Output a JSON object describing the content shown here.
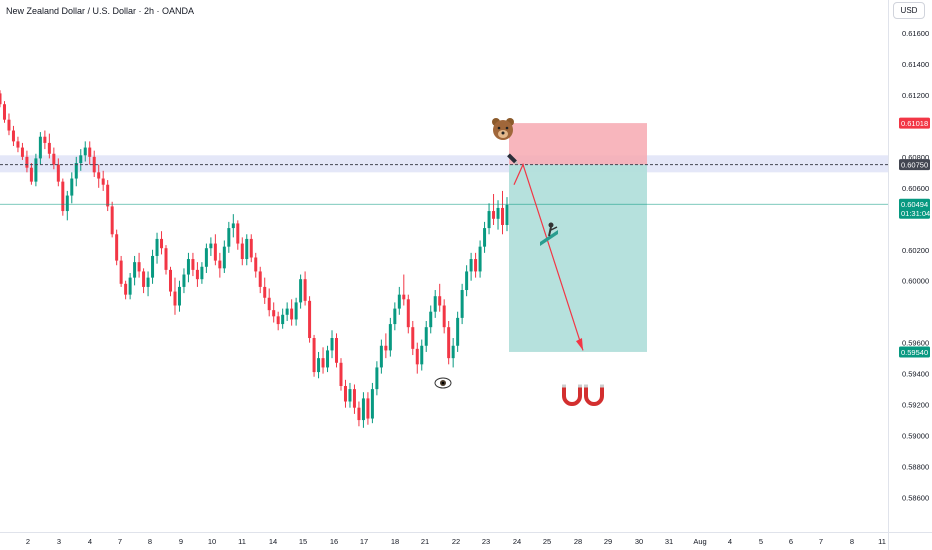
{
  "header": {
    "title": "New Zealand Dollar / U.S. Dollar · 2h · OANDA",
    "currency_button": "USD"
  },
  "chart_data": {
    "type": "candlestick",
    "title": "New Zealand Dollar / U.S. Dollar · 2h · OANDA",
    "y_ticks": [
      "0.61600",
      "0.61400",
      "0.61200",
      "0.60800",
      "0.60600",
      "0.60200",
      "0.60000",
      "0.59600",
      "0.59400",
      "0.59200",
      "0.59000",
      "0.58800",
      "0.58600"
    ],
    "x_ticks": [
      "2",
      "3",
      "4",
      "7",
      "8",
      "9",
      "10",
      "11",
      "14",
      "15",
      "16",
      "17",
      "18",
      "21",
      "22",
      "23",
      "24",
      "25",
      "28",
      "29",
      "30",
      "31",
      "Aug",
      "4",
      "5",
      "6",
      "7",
      "8",
      "11"
    ],
    "ylim": [
      0.5855,
      0.6185
    ],
    "price_labels": {
      "stop": {
        "value": "0.61018",
        "color": "#f23645"
      },
      "entry": {
        "value": "0.60750",
        "color": "#434651"
      },
      "current": {
        "value": "0.60494",
        "countdown": "01:31:04",
        "color": "#089981"
      },
      "target": {
        "value": "0.59540",
        "color": "#089981"
      }
    },
    "zones": {
      "resistance": {
        "from": 0.607,
        "to": 0.6081
      },
      "short_risk": {
        "from": 0.6075,
        "to": 0.61018
      },
      "short_reward": {
        "from": 0.5954,
        "to": 0.6075
      }
    },
    "annotations": [
      "bear-icon",
      "pen-icon",
      "skier-icon",
      "eye-icon",
      "magnet-icon"
    ],
    "colors": {
      "up": "#089981",
      "down": "#f23645",
      "reward": "#b2dfdb",
      "risk": "#f7a9b1",
      "zone": "#dfe3f7"
    },
    "candles_ohlc": [
      [
        0.6121,
        0.6123,
        0.6112,
        0.6114
      ],
      [
        0.6114,
        0.6116,
        0.6102,
        0.6104
      ],
      [
        0.6104,
        0.6108,
        0.6094,
        0.6097
      ],
      [
        0.6097,
        0.61,
        0.6087,
        0.609
      ],
      [
        0.609,
        0.6093,
        0.6083,
        0.6086
      ],
      [
        0.6086,
        0.6089,
        0.6078,
        0.608
      ],
      [
        0.608,
        0.6084,
        0.607,
        0.6073
      ],
      [
        0.6073,
        0.6076,
        0.6062,
        0.6064
      ],
      [
        0.6064,
        0.6082,
        0.6061,
        0.6079
      ],
      [
        0.6079,
        0.6096,
        0.6075,
        0.6093
      ],
      [
        0.6093,
        0.6097,
        0.6085,
        0.6089
      ],
      [
        0.6089,
        0.6095,
        0.6079,
        0.6082
      ],
      [
        0.6082,
        0.6086,
        0.6072,
        0.6075
      ],
      [
        0.6075,
        0.6079,
        0.6061,
        0.6064
      ],
      [
        0.6064,
        0.6066,
        0.6042,
        0.6045
      ],
      [
        0.6045,
        0.6058,
        0.6039,
        0.6055
      ],
      [
        0.6055,
        0.607,
        0.605,
        0.6066
      ],
      [
        0.6066,
        0.608,
        0.6061,
        0.6076
      ],
      [
        0.6076,
        0.6085,
        0.6071,
        0.6081
      ],
      [
        0.6081,
        0.609,
        0.6077,
        0.6086
      ],
      [
        0.6086,
        0.609,
        0.6075,
        0.608
      ],
      [
        0.608,
        0.6084,
        0.6067,
        0.607
      ],
      [
        0.607,
        0.6075,
        0.606,
        0.6066
      ],
      [
        0.6066,
        0.6071,
        0.6058,
        0.6062
      ],
      [
        0.6062,
        0.6065,
        0.6045,
        0.6048
      ],
      [
        0.6048,
        0.6051,
        0.6028,
        0.603
      ],
      [
        0.603,
        0.6033,
        0.601,
        0.6013
      ],
      [
        0.6013,
        0.6016,
        0.5996,
        0.5998
      ],
      [
        0.5998,
        0.6,
        0.5988,
        0.5991
      ],
      [
        0.5991,
        0.6005,
        0.5988,
        0.6002
      ],
      [
        0.6002,
        0.6016,
        0.5997,
        0.6012
      ],
      [
        0.6012,
        0.6018,
        0.6002,
        0.6006
      ],
      [
        0.6006,
        0.6008,
        0.5992,
        0.5996
      ],
      [
        0.5996,
        0.6006,
        0.599,
        0.6002
      ],
      [
        0.6002,
        0.602,
        0.5998,
        0.6016
      ],
      [
        0.6016,
        0.6031,
        0.6011,
        0.6027
      ],
      [
        0.6027,
        0.6032,
        0.6017,
        0.6021
      ],
      [
        0.6021,
        0.6023,
        0.6004,
        0.6007
      ],
      [
        0.6007,
        0.6009,
        0.599,
        0.5993
      ],
      [
        0.5993,
        0.6002,
        0.5978,
        0.5984
      ],
      [
        0.5984,
        0.6,
        0.598,
        0.5996
      ],
      [
        0.5996,
        0.6008,
        0.5992,
        0.6004
      ],
      [
        0.6004,
        0.6018,
        0.5999,
        0.6014
      ],
      [
        0.6014,
        0.6018,
        0.6003,
        0.6007
      ],
      [
        0.6007,
        0.6012,
        0.5996,
        0.6001
      ],
      [
        0.6001,
        0.6012,
        0.5998,
        0.6009
      ],
      [
        0.6009,
        0.6024,
        0.6005,
        0.6021
      ],
      [
        0.6021,
        0.6028,
        0.6016,
        0.6024
      ],
      [
        0.6024,
        0.603,
        0.601,
        0.6013
      ],
      [
        0.6013,
        0.6018,
        0.6002,
        0.6008
      ],
      [
        0.6008,
        0.6026,
        0.6005,
        0.6022
      ],
      [
        0.6022,
        0.6038,
        0.6018,
        0.6034
      ],
      [
        0.6034,
        0.6043,
        0.6028,
        0.6037
      ],
      [
        0.6037,
        0.6039,
        0.602,
        0.6024
      ],
      [
        0.6024,
        0.6028,
        0.601,
        0.6014
      ],
      [
        0.6014,
        0.603,
        0.601,
        0.6027
      ],
      [
        0.6027,
        0.603,
        0.6012,
        0.6015
      ],
      [
        0.6015,
        0.6018,
        0.6002,
        0.6006
      ],
      [
        0.6006,
        0.6009,
        0.5992,
        0.5996
      ],
      [
        0.5996,
        0.6002,
        0.5985,
        0.5989
      ],
      [
        0.5989,
        0.5995,
        0.5977,
        0.5981
      ],
      [
        0.5981,
        0.5986,
        0.5973,
        0.5977
      ],
      [
        0.5977,
        0.598,
        0.5968,
        0.5972
      ],
      [
        0.5972,
        0.5982,
        0.5969,
        0.5978
      ],
      [
        0.5978,
        0.5986,
        0.5974,
        0.5982
      ],
      [
        0.5982,
        0.5988,
        0.5971,
        0.5975
      ],
      [
        0.5975,
        0.5989,
        0.5971,
        0.5986
      ],
      [
        0.5986,
        0.6004,
        0.5982,
        0.6001
      ],
      [
        0.6001,
        0.6006,
        0.5984,
        0.5987
      ],
      [
        0.5987,
        0.599,
        0.596,
        0.5963
      ],
      [
        0.5963,
        0.5965,
        0.5938,
        0.5941
      ],
      [
        0.5941,
        0.5954,
        0.5937,
        0.595
      ],
      [
        0.595,
        0.5957,
        0.594,
        0.5944
      ],
      [
        0.5944,
        0.5958,
        0.5941,
        0.5955
      ],
      [
        0.5955,
        0.5968,
        0.595,
        0.5963
      ],
      [
        0.5963,
        0.5966,
        0.5944,
        0.5947
      ],
      [
        0.5947,
        0.595,
        0.5929,
        0.5932
      ],
      [
        0.5932,
        0.5936,
        0.5918,
        0.5922
      ],
      [
        0.5922,
        0.5934,
        0.5918,
        0.593
      ],
      [
        0.593,
        0.5933,
        0.5914,
        0.5918
      ],
      [
        0.5918,
        0.5922,
        0.5906,
        0.591
      ],
      [
        0.591,
        0.5928,
        0.5905,
        0.5924
      ],
      [
        0.5924,
        0.5928,
        0.5907,
        0.5911
      ],
      [
        0.5911,
        0.5934,
        0.5908,
        0.593
      ],
      [
        0.593,
        0.5948,
        0.5926,
        0.5944
      ],
      [
        0.5944,
        0.5962,
        0.594,
        0.5958
      ],
      [
        0.5958,
        0.5966,
        0.595,
        0.5955
      ],
      [
        0.5955,
        0.5976,
        0.5951,
        0.5972
      ],
      [
        0.5972,
        0.5986,
        0.5968,
        0.5982
      ],
      [
        0.5982,
        0.5996,
        0.5978,
        0.5991
      ],
      [
        0.5991,
        0.6004,
        0.5984,
        0.5988
      ],
      [
        0.5988,
        0.5991,
        0.5966,
        0.597
      ],
      [
        0.597,
        0.5974,
        0.5952,
        0.5956
      ],
      [
        0.5956,
        0.596,
        0.594,
        0.5946
      ],
      [
        0.5946,
        0.5962,
        0.5942,
        0.5958
      ],
      [
        0.5958,
        0.5974,
        0.5954,
        0.597
      ],
      [
        0.597,
        0.5984,
        0.5966,
        0.598
      ],
      [
        0.598,
        0.5994,
        0.5976,
        0.599
      ],
      [
        0.599,
        0.5998,
        0.598,
        0.5984
      ],
      [
        0.5984,
        0.5988,
        0.5966,
        0.597
      ],
      [
        0.597,
        0.5974,
        0.5946,
        0.595
      ],
      [
        0.595,
        0.5963,
        0.5944,
        0.5958
      ],
      [
        0.5958,
        0.598,
        0.5954,
        0.5976
      ],
      [
        0.5976,
        0.5998,
        0.5972,
        0.5994
      ],
      [
        0.5994,
        0.601,
        0.599,
        0.6006
      ],
      [
        0.6006,
        0.6018,
        0.6,
        0.6014
      ],
      [
        0.6014,
        0.6018,
        0.6002,
        0.6006
      ],
      [
        0.6006,
        0.6026,
        0.6002,
        0.6022
      ],
      [
        0.6022,
        0.6038,
        0.6018,
        0.6034
      ],
      [
        0.6034,
        0.605,
        0.603,
        0.6045
      ],
      [
        0.6045,
        0.6056,
        0.6036,
        0.604
      ],
      [
        0.604,
        0.6052,
        0.6033,
        0.6047
      ],
      [
        0.6047,
        0.6058,
        0.603,
        0.6036
      ],
      [
        0.6036,
        0.6054,
        0.6032,
        0.6049
      ]
    ]
  }
}
